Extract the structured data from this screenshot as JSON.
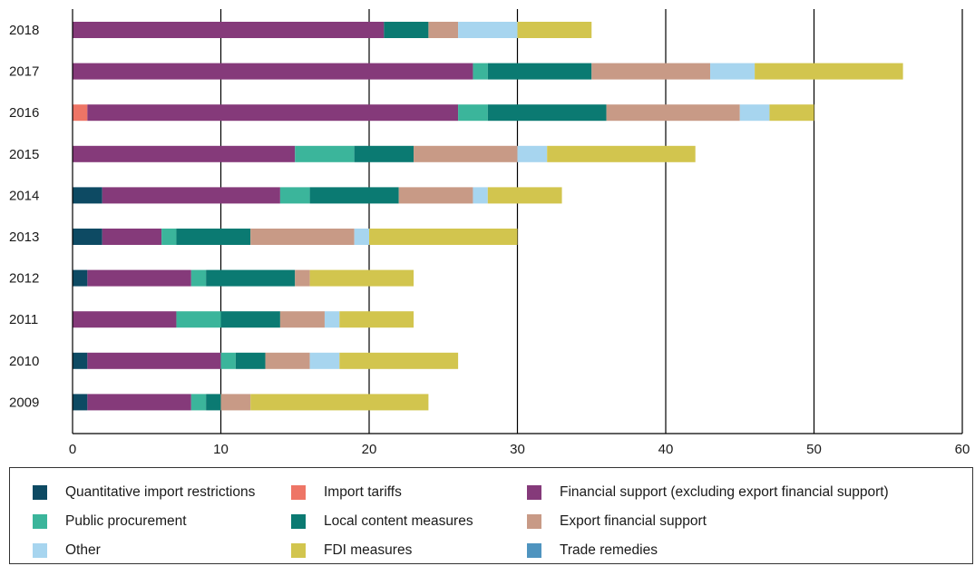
{
  "chart_data": {
    "type": "bar",
    "orientation": "horizontal",
    "stacked": true,
    "title": "",
    "xlabel": "",
    "ylabel": "",
    "xlim": [
      0,
      60
    ],
    "x_ticks": [
      0,
      10,
      20,
      30,
      40,
      50,
      60
    ],
    "grid": "vertical",
    "legend_position": "bottom",
    "categories": [
      "2018",
      "2017",
      "2016",
      "2015",
      "2014",
      "2013",
      "2012",
      "2011",
      "2010",
      "2009"
    ],
    "series": [
      {
        "name": "Quantitative import restrictions",
        "color": "#0d4a63",
        "values": [
          0,
          0,
          0,
          0,
          2,
          2,
          1,
          0,
          1,
          1
        ]
      },
      {
        "name": "Import tariffs",
        "color": "#ee7566",
        "values": [
          0,
          0,
          1,
          0,
          0,
          0,
          0,
          0,
          0,
          0
        ]
      },
      {
        "name": "Financial support (excluding export financial support)",
        "color": "#853a7a",
        "values": [
          21,
          27,
          25,
          15,
          12,
          4,
          7,
          7,
          9,
          7
        ]
      },
      {
        "name": "Public procurement",
        "color": "#3bb59b",
        "values": [
          0,
          1,
          2,
          4,
          2,
          1,
          1,
          3,
          1,
          1
        ]
      },
      {
        "name": "Local content measures",
        "color": "#0b7a72",
        "values": [
          3,
          7,
          8,
          4,
          6,
          5,
          6,
          4,
          2,
          1
        ]
      },
      {
        "name": "Export financial support",
        "color": "#c89a86",
        "values": [
          2,
          8,
          9,
          7,
          5,
          7,
          1,
          3,
          3,
          2
        ]
      },
      {
        "name": "Other",
        "color": "#a7d5ef",
        "values": [
          4,
          3,
          2,
          2,
          1,
          1,
          0,
          1,
          2,
          0
        ]
      },
      {
        "name": "FDI measures",
        "color": "#d2c54e",
        "values": [
          5,
          10,
          3,
          10,
          5,
          10,
          7,
          5,
          8,
          12
        ]
      },
      {
        "name": "Trade remedies",
        "color": "#4f94bf",
        "values": [
          0,
          0,
          0,
          0,
          0,
          0,
          0,
          0,
          0,
          0
        ]
      }
    ]
  }
}
